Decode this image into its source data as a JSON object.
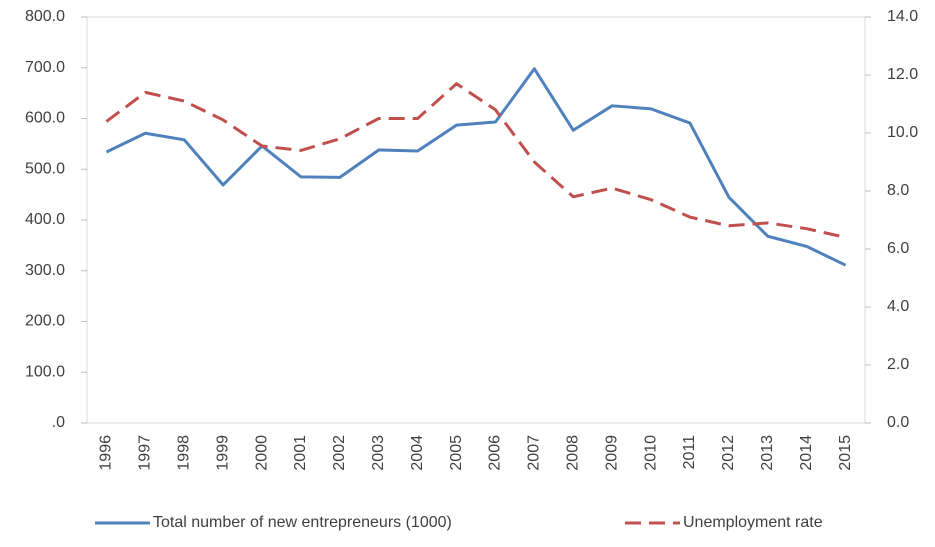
{
  "chart_data": {
    "type": "line",
    "categories": [
      "1996",
      "1997",
      "1998",
      "1999",
      "2000",
      "2001",
      "2002",
      "2003",
      "2004",
      "2005",
      "2006",
      "2007",
      "2008",
      "2009",
      "2010",
      "2011",
      "2012",
      "2013",
      "2014",
      "2015"
    ],
    "series": [
      {
        "name": "Total number of new entrepreneurs (1000)",
        "color": "#4f81bd",
        "dash": "solid",
        "values": [
          534,
          571,
          558,
          469,
          546,
          485,
          484,
          538,
          536,
          587,
          593,
          698,
          577,
          625,
          619,
          591,
          445,
          368,
          348,
          311
        ]
      },
      {
        "name": "Unemployment rate",
        "color": "#c0504d",
        "dash": "dashed",
        "axis": "y2",
        "values": [
          10.4,
          11.4,
          11.1,
          10.45,
          9.55,
          9.4,
          9.8,
          10.5,
          10.5,
          11.7,
          10.8,
          9.0,
          7.8,
          8.1,
          7.7,
          7.1,
          6.8,
          6.9,
          6.7,
          6.4
        ]
      }
    ],
    "ylim": [
      0,
      800
    ],
    "yticks": [
      {
        "value": 0,
        "label": ".0"
      },
      {
        "value": 100,
        "label": "100.0"
      },
      {
        "value": 200,
        "label": "200.0"
      },
      {
        "value": 300,
        "label": "300.0"
      },
      {
        "value": 400,
        "label": "400.0"
      },
      {
        "value": 500,
        "label": "500.0"
      },
      {
        "value": 600,
        "label": "600.0"
      },
      {
        "value": 700,
        "label": "700.0"
      },
      {
        "value": 800,
        "label": "800.0"
      }
    ],
    "y2lim": [
      0,
      14
    ],
    "y2ticks": [
      {
        "value": 0,
        "label": "0.0"
      },
      {
        "value": 2,
        "label": "2.0"
      },
      {
        "value": 4,
        "label": "4.0"
      },
      {
        "value": 6,
        "label": "6.0"
      },
      {
        "value": 8,
        "label": "8.0"
      },
      {
        "value": 10,
        "label": "10.0"
      },
      {
        "value": 12,
        "label": "12.0"
      },
      {
        "value": 14,
        "label": "14.0"
      }
    ],
    "grid": false,
    "legend": "bottom"
  }
}
